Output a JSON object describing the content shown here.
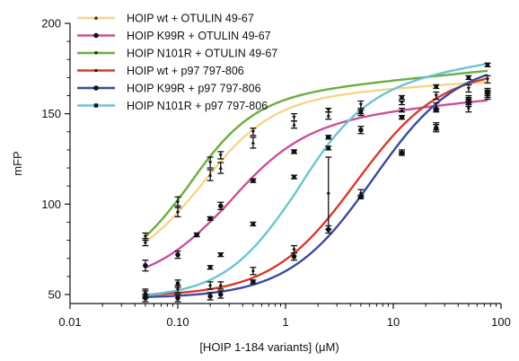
{
  "chart_data": {
    "type": "scatter",
    "xlabel": "[HOIP 1-184 variants] (μM)",
    "ylabel": "mFP",
    "x_scale": "log",
    "xlim": [
      0.01,
      100
    ],
    "ylim": [
      45,
      200
    ],
    "x_ticks": [
      0.01,
      0.1,
      1,
      10,
      100
    ],
    "x_tick_labels": [
      "0.01",
      "0.10",
      "1",
      "10",
      "100"
    ],
    "y_ticks": [
      50,
      100,
      150,
      200
    ],
    "y_tick_labels": [
      "50",
      "100",
      "150",
      "200"
    ],
    "legend_position": "top-left",
    "grid": false,
    "series": [
      {
        "name": "HOIP wt + OTULIN 49-67",
        "color": "#f5d58a",
        "marker": "triangle",
        "x": [
          0.05,
          0.1,
          0.2,
          0.25,
          0.5,
          1.2,
          2.5,
          5,
          12,
          25,
          50,
          75
        ],
        "y": [
          79,
          96,
          116,
          120,
          134,
          144,
          149,
          151,
          152,
          154,
          158,
          161
        ],
        "err": [
          2,
          3,
          3,
          3,
          3,
          2,
          2,
          2,
          1,
          2,
          2,
          2
        ],
        "fit": {
          "bottom": 62,
          "top": 157,
          "ec50": 0.16,
          "hill": 1.3,
          "slope": 4
        }
      },
      {
        "name": "HOIP K99R + OTULIN 49-67",
        "color": "#c9519b",
        "marker": "circle",
        "x": [
          0.05,
          0.1,
          0.15,
          0.2,
          0.25,
          0.5,
          1.2,
          2.5,
          5,
          12,
          25,
          50,
          75
        ],
        "y": [
          66,
          72,
          83,
          92,
          99,
          113,
          129,
          137,
          141,
          148,
          152,
          158,
          162
        ],
        "err": [
          3,
          2,
          1,
          1,
          2,
          1,
          1,
          1,
          2,
          1,
          1,
          1,
          1
        ],
        "fit": {
          "bottom": 55,
          "top": 143,
          "ec50": 0.28,
          "hill": 1.2,
          "slope": 6
        }
      },
      {
        "name": "HOIP N101R + OTULIN 49-67",
        "color": "#6bae3f",
        "marker": "triangle-down",
        "x": [
          0.05,
          0.1,
          0.2,
          0.25,
          0.5,
          1.2,
          2.5,
          5,
          12,
          25,
          50,
          75
        ],
        "y": [
          82,
          101,
          123,
          127,
          140,
          148,
          152,
          155,
          156,
          160,
          164,
          169
        ],
        "err": [
          2,
          3,
          3,
          2,
          2,
          2,
          1,
          2,
          1,
          2,
          2,
          2
        ],
        "fit": {
          "bottom": 60,
          "top": 157,
          "ec50": 0.12,
          "hill": 1.4,
          "slope": 6
        }
      },
      {
        "name": "HOIP wt + p97 797-806",
        "color": "#d93a2b",
        "marker": "dot",
        "x": [
          0.05,
          0.1,
          0.2,
          0.25,
          0.5,
          1.2,
          2.5,
          5,
          12,
          25,
          50,
          75
        ],
        "y": [
          51,
          53,
          55,
          55,
          63,
          75,
          106,
          106,
          129,
          143,
          153,
          160
        ],
        "err": [
          2,
          2,
          2,
          2,
          2,
          2,
          20,
          2,
          1,
          2,
          2,
          2
        ],
        "fit": {
          "bottom": 49,
          "top": 175,
          "ec50": 4.5,
          "hill": 1.1,
          "slope": 0
        }
      },
      {
        "name": "HOIP K99R + p97 797-806",
        "color": "#3b4a9e",
        "marker": "circle",
        "x": [
          0.05,
          0.1,
          0.2,
          0.25,
          0.5,
          1.2,
          2.5,
          5,
          12,
          25,
          50,
          75
        ],
        "y": [
          48,
          48,
          49,
          50,
          57,
          71,
          86,
          104,
          128,
          142,
          156,
          162
        ],
        "err": [
          2,
          2,
          2,
          2,
          1,
          2,
          2,
          1,
          1,
          2,
          2,
          2
        ],
        "fit": {
          "bottom": 48,
          "top": 180,
          "ec50": 6.5,
          "hill": 1.1,
          "slope": 0
        }
      },
      {
        "name": "HOIP N101R + p97 797-806",
        "color": "#6cc4d3",
        "marker": "square",
        "x": [
          0.05,
          0.1,
          0.2,
          0.25,
          0.5,
          1.2,
          2.5,
          5,
          12,
          25,
          50,
          75
        ],
        "y": [
          50,
          56,
          65,
          72,
          89,
          115,
          131,
          151,
          159,
          165,
          170,
          177
        ],
        "err": [
          2,
          2,
          1,
          1,
          1,
          1,
          1,
          1,
          1,
          1,
          1,
          1
        ],
        "fit": {
          "bottom": 48,
          "top": 162,
          "ec50": 1.2,
          "hill": 1.3,
          "slope": 9
        }
      }
    ]
  }
}
